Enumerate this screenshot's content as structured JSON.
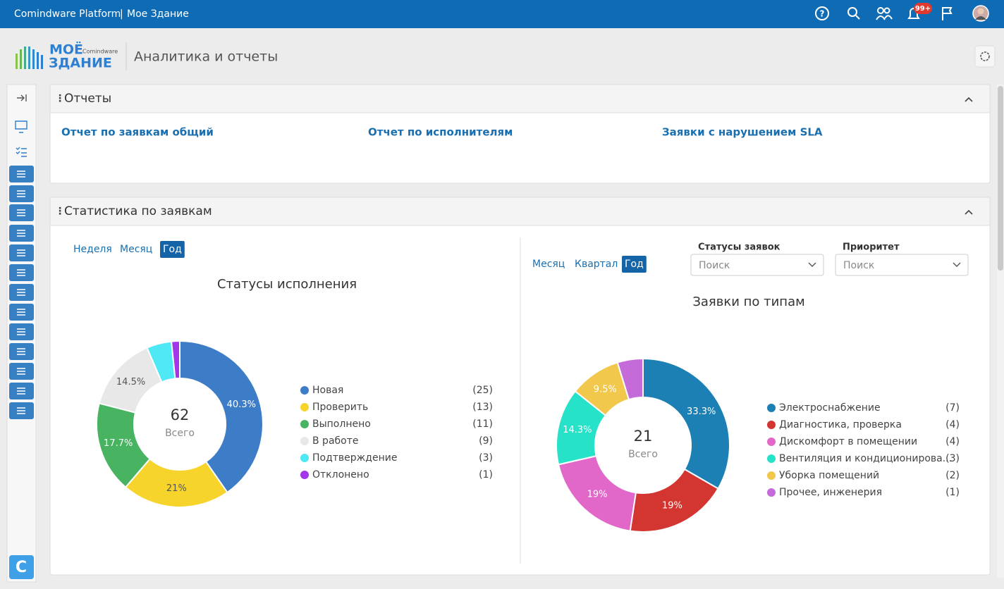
{
  "header": {
    "app": "Comindware Platform",
    "separator": "|",
    "workspace": "Мое Здание",
    "notifications_badge": "99+"
  },
  "logo": {
    "line1": "МОЁ",
    "line2": "ЗДАНИЕ",
    "brand": "Comindware"
  },
  "page_title": "Аналитика и отчеты",
  "reports": {
    "title": "Отчеты",
    "links": [
      "Отчет по заявкам общий",
      "Отчет по исполнителям",
      "Заявки с нарушением SLA"
    ]
  },
  "statistics": {
    "title": "Статистика по заявкам",
    "left_periods": {
      "items": [
        "Неделя",
        "Месяц",
        "Год"
      ],
      "active": 2
    },
    "right_periods": {
      "items": [
        "Месяц",
        "Квартал",
        "Год"
      ],
      "active": 2
    },
    "filters": [
      {
        "label": "Статусы заявок",
        "placeholder": "Поиск"
      },
      {
        "label": "Приоритет",
        "placeholder": "Поиск"
      }
    ]
  },
  "chart_data": [
    {
      "type": "donut",
      "title": "Статусы исполнения",
      "total": 62,
      "total_label": "Всего",
      "categories": [
        "Новая",
        "Проверить",
        "Выполнено",
        "В работе",
        "Подтверждение",
        "Отклонено"
      ],
      "values": [
        25,
        13,
        11,
        9,
        3,
        1
      ],
      "value_labels": [
        "(25)",
        "(13)",
        "(11)",
        "(9)",
        "(3)",
        "(1)"
      ],
      "slice_labels": [
        "40.3%",
        "21%",
        "17.7%",
        "14.5%",
        null,
        null
      ],
      "colors": [
        "#3d7cc6",
        "#f6d42c",
        "#48b462",
        "#e8e8e8",
        "#4fe9f5",
        "#a236e8"
      ]
    },
    {
      "type": "donut",
      "title": "Заявки по типам",
      "total": 21,
      "total_label": "Всего",
      "categories": [
        "Электроснабжение",
        "Диагностика, проверка",
        "Дискомфорт в помещении",
        "Вентиляция и кондиционирова...",
        "Уборка помещений",
        "Прочее, инженерия"
      ],
      "values": [
        7,
        4,
        4,
        3,
        2,
        1
      ],
      "value_labels": [
        "(7)",
        "(4)",
        "(4)",
        "(3)",
        "(2)",
        "(1)"
      ],
      "slice_labels": [
        "33.3%",
        "19%",
        "19%",
        "14.3%",
        "9.5%",
        null
      ],
      "colors": [
        "#1c80b4",
        "#d33631",
        "#e168c9",
        "#26e2c9",
        "#f1c74c",
        "#c46ad9"
      ]
    }
  ]
}
